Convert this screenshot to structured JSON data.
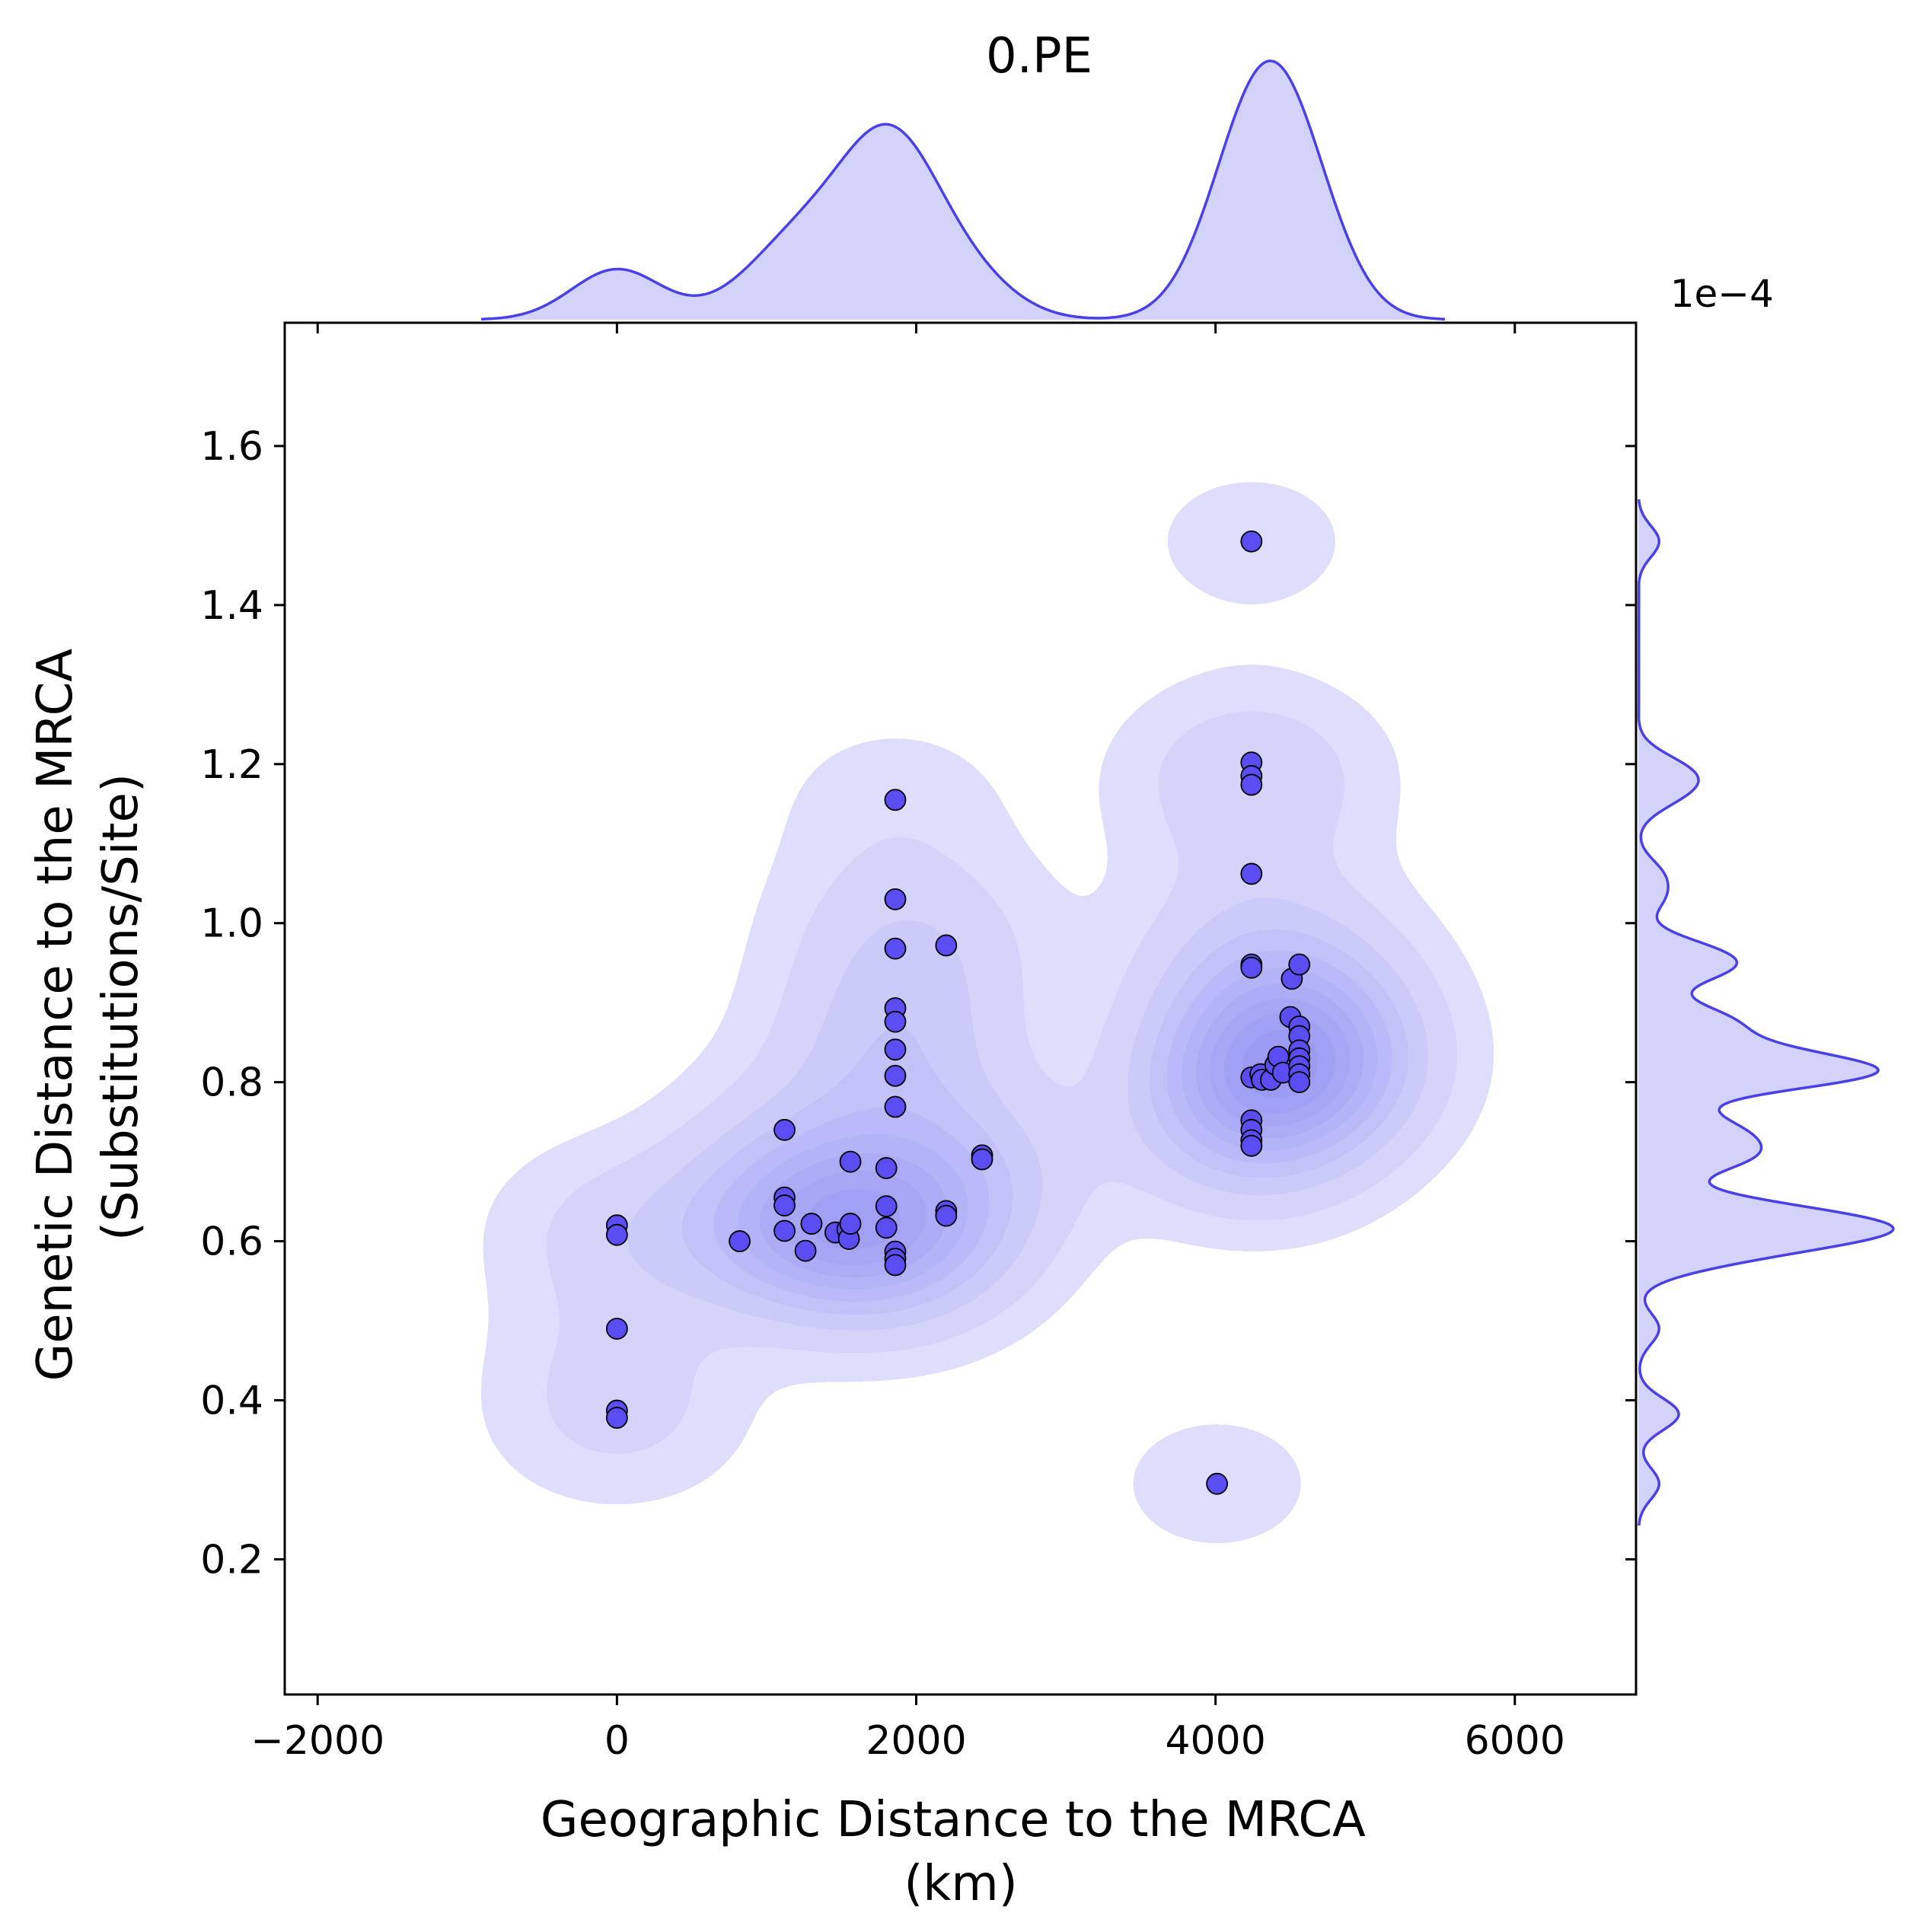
{
  "chart_data": {
    "type": "scatter",
    "title": "0.PE",
    "xlabel_lines": [
      "Geographic Distance to the MRCA",
      "(km)"
    ],
    "ylabel_lines": [
      "Genetic Distance to the MRCA",
      "(Substitutions/Site)"
    ],
    "y_offset_label": "1e−4",
    "x_ticks": [
      -2000,
      0,
      2000,
      4000,
      6000
    ],
    "x_tick_labels": [
      "−2000",
      "0",
      "2000",
      "4000",
      "6000"
    ],
    "y_ticks": [
      0.2,
      0.4,
      0.6,
      0.8,
      1.0,
      1.2,
      1.4,
      1.6
    ],
    "y_tick_labels": [
      "0.2",
      "0.4",
      "0.6",
      "0.8",
      "1.0",
      "1.2",
      "1.4",
      "1.6"
    ],
    "xlim": [
      -2220,
      6810
    ],
    "ylim": [
      0.03,
      1.755
    ],
    "grid": false,
    "marginals": "kde",
    "density_contours": true,
    "colors": {
      "point_fill": "#5a4df2",
      "point_edge": "#000000",
      "kde_fill": "#5a5af0",
      "kde_line": "#4a40e8"
    },
    "points": [
      {
        "x": 0,
        "y": 0.62
      },
      {
        "x": 0,
        "y": 0.608
      },
      {
        "x": 0,
        "y": 0.49
      },
      {
        "x": 0,
        "y": 0.387
      },
      {
        "x": 0,
        "y": 0.378
      },
      {
        "x": 820,
        "y": 0.6
      },
      {
        "x": 1120,
        "y": 0.74
      },
      {
        "x": 1120,
        "y": 0.655
      },
      {
        "x": 1120,
        "y": 0.645
      },
      {
        "x": 1120,
        "y": 0.613
      },
      {
        "x": 1260,
        "y": 0.588
      },
      {
        "x": 1300,
        "y": 0.622
      },
      {
        "x": 1460,
        "y": 0.611
      },
      {
        "x": 1540,
        "y": 0.615
      },
      {
        "x": 1550,
        "y": 0.603
      },
      {
        "x": 1560,
        "y": 0.622
      },
      {
        "x": 1560,
        "y": 0.7
      },
      {
        "x": 1800,
        "y": 0.692
      },
      {
        "x": 1800,
        "y": 0.644
      },
      {
        "x": 1800,
        "y": 0.617
      },
      {
        "x": 1860,
        "y": 1.155
      },
      {
        "x": 1860,
        "y": 1.03
      },
      {
        "x": 1860,
        "y": 0.968
      },
      {
        "x": 1860,
        "y": 0.893
      },
      {
        "x": 1860,
        "y": 0.876
      },
      {
        "x": 1860,
        "y": 0.841
      },
      {
        "x": 1860,
        "y": 0.808
      },
      {
        "x": 1860,
        "y": 0.769
      },
      {
        "x": 1860,
        "y": 0.587
      },
      {
        "x": 1860,
        "y": 0.578
      },
      {
        "x": 1860,
        "y": 0.57
      },
      {
        "x": 2200,
        "y": 0.972
      },
      {
        "x": 2200,
        "y": 0.638
      },
      {
        "x": 2200,
        "y": 0.632
      },
      {
        "x": 2440,
        "y": 0.708
      },
      {
        "x": 2440,
        "y": 0.703
      },
      {
        "x": 4010,
        "y": 0.295
      },
      {
        "x": 4240,
        "y": 1.48
      },
      {
        "x": 4240,
        "y": 1.202
      },
      {
        "x": 4240,
        "y": 1.185
      },
      {
        "x": 4240,
        "y": 1.174
      },
      {
        "x": 4240,
        "y": 1.062
      },
      {
        "x": 4240,
        "y": 0.948
      },
      {
        "x": 4240,
        "y": 0.944
      },
      {
        "x": 4240,
        "y": 0.806
      },
      {
        "x": 4240,
        "y": 0.752
      },
      {
        "x": 4240,
        "y": 0.74
      },
      {
        "x": 4240,
        "y": 0.727
      },
      {
        "x": 4240,
        "y": 0.72
      },
      {
        "x": 4300,
        "y": 0.81
      },
      {
        "x": 4310,
        "y": 0.803
      },
      {
        "x": 4370,
        "y": 0.803
      },
      {
        "x": 4400,
        "y": 0.822
      },
      {
        "x": 4420,
        "y": 0.832
      },
      {
        "x": 4450,
        "y": 0.812
      },
      {
        "x": 4500,
        "y": 0.882
      },
      {
        "x": 4510,
        "y": 0.93
      },
      {
        "x": 4560,
        "y": 0.948
      },
      {
        "x": 4560,
        "y": 0.87
      },
      {
        "x": 4560,
        "y": 0.858
      },
      {
        "x": 4560,
        "y": 0.84
      },
      {
        "x": 4560,
        "y": 0.83
      },
      {
        "x": 4560,
        "y": 0.82
      },
      {
        "x": 4560,
        "y": 0.81
      },
      {
        "x": 4560,
        "y": 0.8
      }
    ]
  }
}
